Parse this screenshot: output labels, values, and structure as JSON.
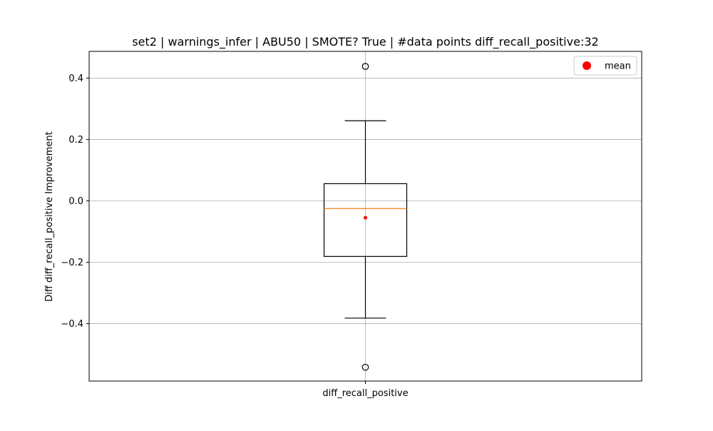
{
  "chart_data": {
    "type": "boxplot",
    "title": "set2 | warnings_infer | ABU50 | SMOTE? True | #data points diff_recall_positive:32",
    "xlabel": "",
    "ylabel": "Diff diff_recall_positive Improvement",
    "categories": [
      "diff_recall_positive"
    ],
    "ylim": [
      -0.587,
      0.487
    ],
    "yticks": [
      -0.4,
      -0.2,
      0.0,
      0.2,
      0.4
    ],
    "ytick_labels": [
      "−0.4",
      "−0.2",
      "0.0",
      "0.2",
      "0.4"
    ],
    "grid": true,
    "legend": {
      "placement": "top-right",
      "entries": [
        {
          "label": "mean",
          "color": "#ff0000",
          "marker": "circle"
        }
      ]
    },
    "series": [
      {
        "category": "diff_recall_positive",
        "whisker_low": -0.382,
        "q1": -0.181,
        "median": -0.025,
        "q3": 0.056,
        "whisker_high": 0.261,
        "mean": -0.055,
        "outliers": [
          0.438,
          -0.542
        ],
        "n": 32
      }
    ],
    "colors": {
      "box": "#000000",
      "median": "#ff7f0e",
      "mean": "#ff0000",
      "grid": "#b0b0b0"
    }
  }
}
